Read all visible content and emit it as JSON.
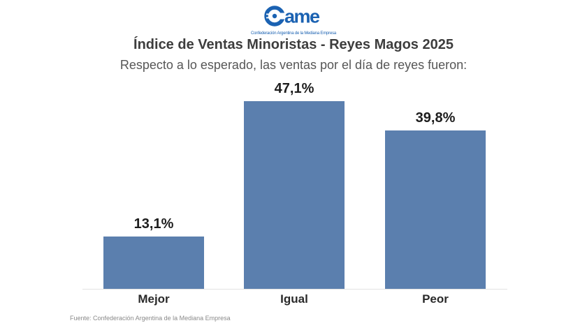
{
  "logo": {
    "name": "CAME",
    "wordmark_suffix": "ame",
    "tagline": "Confederación Argentina de la Mediana Empresa",
    "color": "#1b62b2"
  },
  "header": {
    "title": "Índice de Ventas Minoristas - Reyes Magos 2025",
    "subtitle": "Respecto a lo esperado, las ventas por el día de reyes fueron:"
  },
  "chart_data": {
    "type": "bar",
    "categories": [
      "Mejor",
      "Igual",
      "Peor"
    ],
    "values": [
      13.1,
      47.1,
      39.8
    ],
    "value_labels": [
      "13,1%",
      "47,1%",
      "39,8%"
    ],
    "title": "Índice de Ventas Minoristas - Reyes Magos 2025",
    "subtitle": "Respecto a lo esperado, las ventas por el día de reyes fueron:",
    "xlabel": "",
    "ylabel": "",
    "ylim": [
      0,
      50
    ],
    "grid": false,
    "legend": false,
    "bar_color": "#5b7fae",
    "axis_line_color": "#e2e2e2"
  },
  "footer": {
    "source": "Fuente: Confederación Argentina de la Mediana Empresa"
  }
}
